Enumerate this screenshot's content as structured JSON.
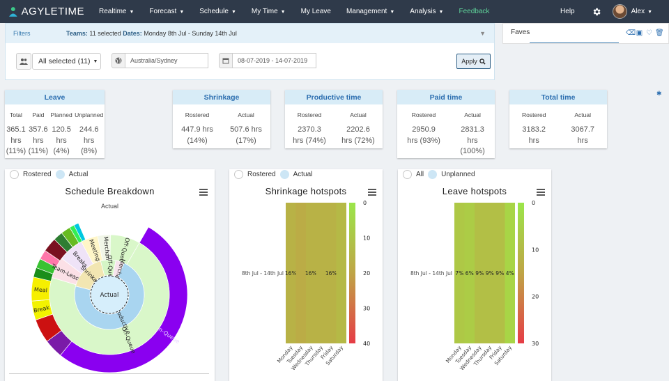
{
  "app": {
    "logo_text": "AGYLETIME"
  },
  "nav": {
    "items": [
      {
        "label": "Realtime",
        "caret": true
      },
      {
        "label": "Forecast",
        "caret": true
      },
      {
        "label": "Schedule",
        "caret": true
      },
      {
        "label": "My Time",
        "caret": true
      },
      {
        "label": "My Leave",
        "caret": false
      },
      {
        "label": "Management",
        "caret": true
      },
      {
        "label": "Analysis",
        "caret": true
      },
      {
        "label": "Feedback",
        "caret": false,
        "color": "#5fd39a"
      }
    ],
    "help": "Help",
    "user": "Alex"
  },
  "filters": {
    "title": "Filters",
    "teams_label": "Teams:",
    "teams_value": "11 selected",
    "dates_label": "Dates:",
    "dates_value": "Monday 8th Jul - Sunday 14th Jul",
    "team_select": "All selected (11)",
    "timezone": "Australia/Sydney",
    "date_range": "08-07-2019 - 14-07-2019",
    "apply": "Apply"
  },
  "faves": {
    "title": "Faves"
  },
  "cards": [
    {
      "title": "Leave",
      "stats": [
        {
          "label": "Total",
          "lines": [
            "365.1",
            "hrs",
            "(11%)"
          ]
        },
        {
          "label": "Paid",
          "lines": [
            "357.6",
            "hrs",
            "(11%)"
          ]
        },
        {
          "label": "Planned",
          "lines": [
            "120.5",
            "hrs",
            "(4%)"
          ]
        },
        {
          "label": "Unplanned",
          "lines": [
            "244.6",
            "hrs",
            "(8%)"
          ]
        }
      ]
    },
    {
      "title": "Shrinkage",
      "stats": [
        {
          "label": "Rostered",
          "lines": [
            "447.9 hrs",
            "(14%)"
          ]
        },
        {
          "label": "Actual",
          "lines": [
            "507.6 hrs",
            "(17%)"
          ]
        }
      ]
    },
    {
      "title": "Productive time",
      "stats": [
        {
          "label": "Rostered",
          "lines": [
            "2370.3",
            "hrs (74%)"
          ]
        },
        {
          "label": "Actual",
          "lines": [
            "2202.6",
            "hrs (72%)"
          ]
        }
      ]
    },
    {
      "title": "Paid time",
      "stats": [
        {
          "label": "Rostered",
          "lines": [
            "2950.9",
            "hrs (93%)"
          ]
        },
        {
          "label": "Actual",
          "lines": [
            "2831.3",
            "hrs",
            "(100%)"
          ]
        }
      ]
    },
    {
      "title": "Total time",
      "stats": [
        {
          "label": "Rostered",
          "lines": [
            "3183.2",
            "hrs"
          ]
        },
        {
          "label": "Actual",
          "lines": [
            "3067.7",
            "hrs"
          ]
        }
      ]
    }
  ],
  "panels": {
    "schedule": {
      "radio_a": "Rostered",
      "radio_b": "Actual",
      "title": "Schedule Breakdown",
      "subtitle": "Actual"
    },
    "shrinkage": {
      "radio_a": "Rostered",
      "radio_b": "Actual",
      "title": "Shrinkage hotspots"
    },
    "leave": {
      "radio_a": "All",
      "radio_b": "Unplanned",
      "title": "Leave hotspots"
    }
  },
  "chart_data": [
    {
      "type": "sunburst",
      "title": "Schedule Breakdown",
      "subtitle": "Actual",
      "center": "Actual",
      "ring1": [
        {
          "name": "Productive",
          "value": 72,
          "color": "#a9d5f0"
        },
        {
          "name": "Shrinkage",
          "value": 17,
          "color": "#f2e6b2"
        },
        {
          "name": "Off-Queue",
          "value": 7,
          "color": "#d5f5c6"
        },
        {
          "name": "Merchant",
          "value": 4,
          "color": "#f7e3ec"
        }
      ],
      "ring2": [
        {
          "name": "On-Queue",
          "value": 62,
          "color": "#d9f7c9"
        },
        {
          "name": "Team-Leader",
          "value": 5,
          "color": "#fbe0e6"
        },
        {
          "name": "Breaks",
          "value": 6,
          "color": "#efe3f7"
        },
        {
          "name": "Meetings",
          "value": 4,
          "color": "#fff6c8"
        },
        {
          "name": "Merchant",
          "value": 3,
          "color": "#f1f6e8"
        },
        {
          "name": "Off-Queue",
          "value": 7,
          "color": "#d9f7c9"
        }
      ],
      "ring3": [
        {
          "name": "On-Queue",
          "value": 53,
          "color": "#8a00f0"
        },
        {
          "name": "",
          "value": 4,
          "color": "#7a1aa8"
        },
        {
          "name": "",
          "value": 5,
          "color": "#cc1111"
        },
        {
          "name": "Break",
          "value": 4,
          "color": "#f2f200"
        },
        {
          "name": "Meal",
          "value": 5,
          "color": "#f6ef00"
        },
        {
          "name": "",
          "value": 2,
          "color": "#1a8e1a"
        },
        {
          "name": "",
          "value": 2,
          "color": "#39c232"
        },
        {
          "name": "",
          "value": 2,
          "color": "#ff77aa"
        },
        {
          "name": "",
          "value": 3,
          "color": "#7a1020"
        },
        {
          "name": "",
          "value": 2,
          "color": "#2e7d32"
        },
        {
          "name": "",
          "value": 2,
          "color": "#66bb22"
        },
        {
          "name": "",
          "value": 1,
          "color": "#33ee55"
        },
        {
          "name": "",
          "value": 1,
          "color": "#00c8e0"
        },
        {
          "name": "",
          "value": 15,
          "color": "none"
        }
      ]
    },
    {
      "type": "heatmap",
      "title": "Shrinkage hotspots",
      "row_label": "8th Jul - 14th Jul",
      "categories": [
        "Monday",
        "Tuesday",
        "Wednesday",
        "Thursday",
        "Friday",
        "Saturday"
      ],
      "values": [
        16,
        18,
        16,
        16,
        16,
        14
      ],
      "labels": [
        "16%",
        "",
        "16%",
        "",
        "16%",
        ""
      ],
      "scale": [
        0,
        40
      ],
      "ticks": [
        0,
        10,
        20,
        30,
        40
      ]
    },
    {
      "type": "heatmap",
      "title": "Leave hotspots",
      "row_label": "8th Jul - 14th Jul",
      "categories": [
        "Monday",
        "Tuesday",
        "Wednesday",
        "Thursday",
        "Friday",
        "Saturday"
      ],
      "values": [
        7,
        6,
        9,
        9,
        9,
        4
      ],
      "labels": [
        "7%",
        "6%",
        "9%",
        "9%",
        "9%",
        "4%"
      ],
      "scale": [
        0,
        30
      ],
      "ticks": [
        0,
        10,
        20,
        30
      ]
    }
  ]
}
